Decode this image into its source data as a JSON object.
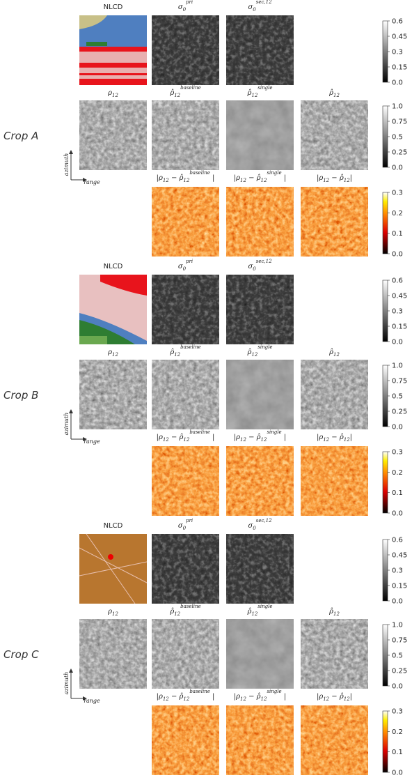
{
  "crops": [
    {
      "label": "Crop A",
      "axes": {
        "y": "azimuth",
        "x": "range"
      },
      "rows": [
        {
          "titles": [
            [
              {
                "text": "NLCD"
              }
            ],
            [
              {
                "text": "σ"
              },
              {
                "text": "0",
                "pos": "sub"
              },
              {
                "text": "pri",
                "pos": "sup"
              }
            ],
            [
              {
                "text": "σ"
              },
              {
                "text": "0",
                "pos": "sub"
              },
              {
                "text": "sec,12",
                "pos": "sup"
              }
            ]
          ],
          "colorbar": {
            "cmap": "gray",
            "lim": [
              0,
              0.6
            ],
            "ticks": [
              {
                "value": 0,
                "label": "0.0"
              },
              0.15,
              0.3,
              0.45,
              0.6
            ]
          }
        },
        {
          "titles": [
            [
              {
                "text": "ρ"
              },
              {
                "text": "12",
                "pos": "sub"
              }
            ],
            [
              {
                "text": "ρ̂"
              },
              {
                "text": "12",
                "pos": "sub"
              },
              {
                "text": "baseline",
                "pos": "sup"
              }
            ],
            [
              {
                "text": "ρ̂"
              },
              {
                "text": "12",
                "pos": "sub"
              },
              {
                "text": "single",
                "pos": "sup"
              }
            ],
            [
              {
                "text": "ρ̂"
              },
              {
                "text": "12",
                "pos": "sub"
              }
            ]
          ],
          "colorbar": {
            "cmap": "gray",
            "lim": [
              0,
              1
            ],
            "ticks": [
              {
                "value": 0,
                "label": "0.0"
              },
              0.25,
              0.5,
              0.75,
              {
                "value": 1,
                "label": "1.0"
              }
            ]
          }
        },
        {
          "titles": [
            [
              {
                "text": "|ρ"
              },
              {
                "text": "12",
                "pos": "sub"
              },
              {
                "text": " − ρ̂"
              },
              {
                "text": "12",
                "pos": "sub"
              },
              {
                "text": "baseline",
                "pos": "sup"
              },
              {
                "text": " |"
              }
            ],
            [
              {
                "text": "|ρ"
              },
              {
                "text": "12",
                "pos": "sub"
              },
              {
                "text": " − ρ̂"
              },
              {
                "text": "12",
                "pos": "sub"
              },
              {
                "text": "single",
                "pos": "sup"
              },
              {
                "text": " |"
              }
            ],
            [
              {
                "text": "|ρ"
              },
              {
                "text": "12",
                "pos": "sub"
              },
              {
                "text": " − ρ̂"
              },
              {
                "text": "12",
                "pos": "sub"
              },
              {
                "text": "|"
              }
            ]
          ],
          "colorbar": {
            "cmap": "hot",
            "lim": [
              0,
              0.3
            ],
            "ticks": [
              {
                "value": 0,
                "label": "0.0"
              },
              0.1,
              0.2,
              0.3
            ]
          }
        }
      ]
    },
    {
      "label": "Crop B",
      "axes": {
        "y": "azimuth",
        "x": "range"
      },
      "rows": [
        {
          "titles": [
            [
              {
                "text": "NLCD"
              }
            ],
            [
              {
                "text": "σ"
              },
              {
                "text": "0",
                "pos": "sub"
              },
              {
                "text": "pri",
                "pos": "sup"
              }
            ],
            [
              {
                "text": "σ"
              },
              {
                "text": "0",
                "pos": "sub"
              },
              {
                "text": "sec,12",
                "pos": "sup"
              }
            ]
          ],
          "colorbar": {
            "cmap": "gray",
            "lim": [
              0,
              0.6
            ],
            "ticks": [
              {
                "value": 0,
                "label": "0.0"
              },
              0.15,
              0.3,
              0.45,
              0.6
            ]
          }
        },
        {
          "titles": [
            [
              {
                "text": "ρ"
              },
              {
                "text": "12",
                "pos": "sub"
              }
            ],
            [
              {
                "text": "ρ̂"
              },
              {
                "text": "12",
                "pos": "sub"
              },
              {
                "text": "baseline",
                "pos": "sup"
              }
            ],
            [
              {
                "text": "ρ̂"
              },
              {
                "text": "12",
                "pos": "sub"
              },
              {
                "text": "single",
                "pos": "sup"
              }
            ],
            [
              {
                "text": "ρ̂"
              },
              {
                "text": "12",
                "pos": "sub"
              }
            ]
          ],
          "colorbar": {
            "cmap": "gray",
            "lim": [
              0,
              1
            ],
            "ticks": [
              {
                "value": 0,
                "label": "0.0"
              },
              0.25,
              0.5,
              0.75,
              {
                "value": 1,
                "label": "1.0"
              }
            ]
          }
        },
        {
          "titles": [
            [
              {
                "text": "|ρ"
              },
              {
                "text": "12",
                "pos": "sub"
              },
              {
                "text": " − ρ̂"
              },
              {
                "text": "12",
                "pos": "sub"
              },
              {
                "text": "baseline",
                "pos": "sup"
              },
              {
                "text": " |"
              }
            ],
            [
              {
                "text": "|ρ"
              },
              {
                "text": "12",
                "pos": "sub"
              },
              {
                "text": " − ρ̂"
              },
              {
                "text": "12",
                "pos": "sub"
              },
              {
                "text": "single",
                "pos": "sup"
              },
              {
                "text": " |"
              }
            ],
            [
              {
                "text": "|ρ"
              },
              {
                "text": "12",
                "pos": "sub"
              },
              {
                "text": " − ρ̂"
              },
              {
                "text": "12",
                "pos": "sub"
              },
              {
                "text": "|"
              }
            ]
          ],
          "colorbar": {
            "cmap": "hot",
            "lim": [
              0,
              0.3
            ],
            "ticks": [
              {
                "value": 0,
                "label": "0.0"
              },
              0.1,
              0.2,
              0.3
            ]
          }
        }
      ]
    },
    {
      "label": "Crop C",
      "axes": {
        "y": "azimuth",
        "x": "range"
      },
      "rows": [
        {
          "titles": [
            [
              {
                "text": "NLCD"
              }
            ],
            [
              {
                "text": "σ"
              },
              {
                "text": "0",
                "pos": "sub"
              },
              {
                "text": "pri",
                "pos": "sup"
              }
            ],
            [
              {
                "text": "σ"
              },
              {
                "text": "0",
                "pos": "sub"
              },
              {
                "text": "sec,12",
                "pos": "sup"
              }
            ]
          ],
          "colorbar": {
            "cmap": "gray",
            "lim": [
              0,
              0.6
            ],
            "ticks": [
              {
                "value": 0,
                "label": "0.0"
              },
              0.15,
              0.3,
              0.45,
              0.6
            ]
          }
        },
        {
          "titles": [
            [
              {
                "text": "ρ"
              },
              {
                "text": "12",
                "pos": "sub"
              }
            ],
            [
              {
                "text": "ρ̂"
              },
              {
                "text": "12",
                "pos": "sub"
              },
              {
                "text": "baseline",
                "pos": "sup"
              }
            ],
            [
              {
                "text": "ρ̂"
              },
              {
                "text": "12",
                "pos": "sub"
              },
              {
                "text": "single",
                "pos": "sup"
              }
            ],
            [
              {
                "text": "ρ̂"
              },
              {
                "text": "12",
                "pos": "sub"
              }
            ]
          ],
          "colorbar": {
            "cmap": "gray",
            "lim": [
              0,
              1
            ],
            "ticks": [
              {
                "value": 0,
                "label": "0.0"
              },
              0.25,
              0.5,
              0.75,
              {
                "value": 1,
                "label": "1.0"
              }
            ]
          }
        },
        {
          "titles": [
            [
              {
                "text": "|ρ"
              },
              {
                "text": "12",
                "pos": "sub"
              },
              {
                "text": " − ρ̂"
              },
              {
                "text": "12",
                "pos": "sub"
              },
              {
                "text": "baseline",
                "pos": "sup"
              },
              {
                "text": " |"
              }
            ],
            [
              {
                "text": "|ρ"
              },
              {
                "text": "12",
                "pos": "sub"
              },
              {
                "text": " − ρ̂"
              },
              {
                "text": "12",
                "pos": "sub"
              },
              {
                "text": "single",
                "pos": "sup"
              },
              {
                "text": " |"
              }
            ],
            [
              {
                "text": "|ρ"
              },
              {
                "text": "12",
                "pos": "sub"
              },
              {
                "text": " − ρ̂"
              },
              {
                "text": "12",
                "pos": "sub"
              },
              {
                "text": "|"
              }
            ]
          ],
          "colorbar": {
            "cmap": "hot",
            "lim": [
              0,
              0.3
            ],
            "ticks": [
              {
                "value": 0,
                "label": "0.0"
              },
              0.1,
              0.2,
              0.3
            ]
          }
        }
      ]
    }
  ]
}
